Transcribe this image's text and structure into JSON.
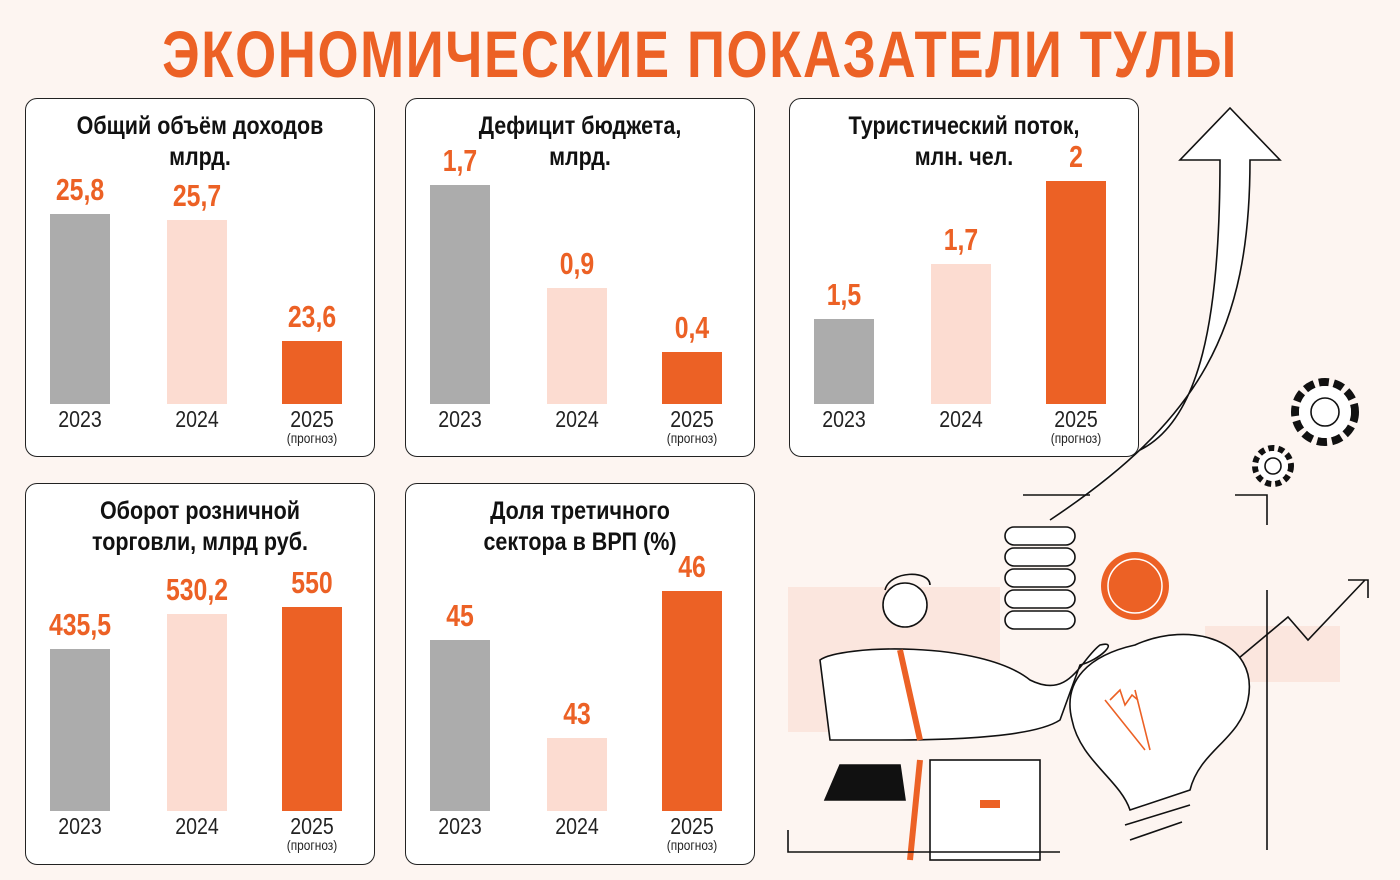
{
  "title": "ЭКОНОМИЧЕСКИЕ ПОКАЗАТЕЛИ ТУЛЫ",
  "colors": {
    "accent": "#ec6125",
    "bar_2023": "#acacac",
    "bar_2024": "#fcdcd1",
    "bar_2025": "#ec6125",
    "background": "#fdf5f1"
  },
  "chart_data": [
    {
      "type": "bar",
      "title": "Общий объём доходов млрд.",
      "title_lines": [
        "Общий объём доходов",
        "млрд."
      ],
      "categories": [
        "2023",
        "2024",
        "2025"
      ],
      "category_notes": [
        "",
        "",
        "(прогноз)"
      ],
      "values": [
        25.8,
        25.7,
        23.6
      ],
      "labels": [
        "25,8",
        "25,7",
        "23,6"
      ],
      "ylim": [
        22.5,
        26.75
      ]
    },
    {
      "type": "bar",
      "title": "Дефицит бюджета, млрд.",
      "title_lines": [
        "Дефицит бюджета,",
        "млрд."
      ],
      "categories": [
        "2023",
        "2024",
        "2025"
      ],
      "category_notes": [
        "",
        "",
        "(прогноз)"
      ],
      "values": [
        1.7,
        0.9,
        0.4
      ],
      "labels": [
        "1,7",
        "0,9",
        "0,4"
      ],
      "ylim": [
        0,
        1.9
      ]
    },
    {
      "type": "bar",
      "title": "Туристический поток, млн. чел.",
      "title_lines": [
        "Туристический поток,",
        "млн. чел."
      ],
      "categories": [
        "2023",
        "2024",
        "2025"
      ],
      "category_notes": [
        "",
        "",
        "(прогноз)"
      ],
      "values": [
        1.5,
        1.7,
        2
      ],
      "labels": [
        "1,5",
        "1,7",
        "2"
      ],
      "ylim": [
        1.19,
        2.08
      ]
    },
    {
      "type": "bar",
      "title": "Оборот розничной торговли, млрд руб.",
      "title_lines": [
        "Оборот розничной",
        "торговли, млрд руб."
      ],
      "categories": [
        "2023",
        "2024",
        "2025"
      ],
      "category_notes": [
        "",
        "",
        "(прогноз)"
      ],
      "values": [
        435.5,
        530.2,
        550
      ],
      "labels": [
        "435,5",
        "530,2",
        "550"
      ],
      "ylim": [
        0,
        660
      ]
    },
    {
      "type": "bar",
      "title": "Доля третичного сектора в ВРП (%)",
      "title_lines": [
        "Доля третичного",
        "сектора в ВРП (%)"
      ],
      "categories": [
        "2023",
        "2024",
        "2025"
      ],
      "category_notes": [
        "",
        "",
        "(прогноз)"
      ],
      "values": [
        45,
        43,
        46
      ],
      "labels": [
        "45",
        "43",
        "46"
      ],
      "ylim": [
        41.5,
        46.5
      ]
    }
  ]
}
